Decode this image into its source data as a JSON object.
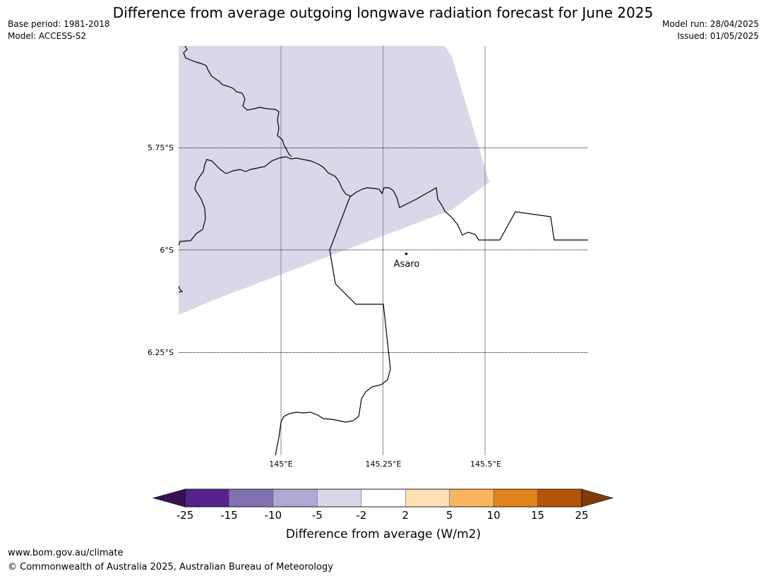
{
  "header": {
    "title": "Difference from average outgoing longwave radiation forecast for June 2025",
    "base_period": "Base period: 1981-2018",
    "model": "Model: ACCESS-S2",
    "model_run": "Model run: 28/04/2025",
    "issued": "Issued: 01/05/2025"
  },
  "map": {
    "lat_labels": [
      "5.75°S",
      "6°S",
      "6.25°S"
    ],
    "lon_labels": [
      "145°E",
      "145.25°E",
      "145.5°E"
    ],
    "place": "Asaro",
    "colors": {
      "shade": "#d8d8e8",
      "border": "#000000",
      "meridian": "#888888"
    }
  },
  "legend": {
    "title": "Difference from average (W/m2)",
    "ticks": [
      "-25",
      "-15",
      "-10",
      "-5",
      "-2",
      "2",
      "5",
      "10",
      "15",
      "25"
    ],
    "colors": [
      "#3b0f55",
      "#56238c",
      "#8171b0",
      "#b0a8d2",
      "#d8d8e8",
      "#ffffff",
      "#fde0b4",
      "#f9b55e",
      "#e1821a",
      "#b35409",
      "#7f3b08"
    ]
  },
  "footer": {
    "url": "www.bom.gov.au/climate",
    "copyright": "© Commonwealth of Australia 2025, Australian Bureau of Meteorology"
  }
}
